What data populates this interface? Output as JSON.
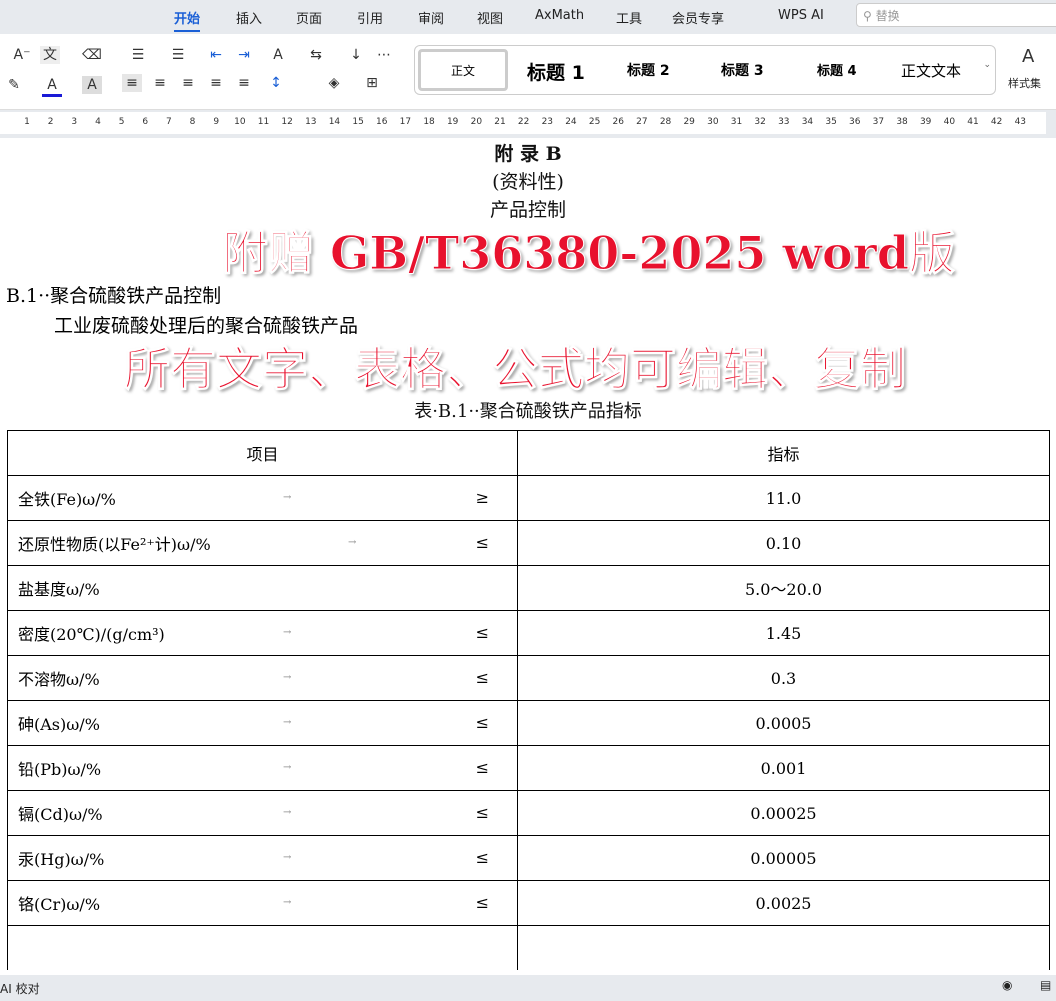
{
  "menu": {
    "tabs": [
      "开始",
      "插入",
      "页面",
      "引用",
      "审阅",
      "视图",
      "AxMath",
      "工具",
      "会员专享",
      "WPS AI"
    ],
    "active": "开始",
    "search_placeholder": "替换"
  },
  "ribbon": {
    "styles": [
      "正文",
      "标题 1",
      "标题 2",
      "标题 3",
      "标题 4",
      "正文文本"
    ],
    "style_set": "样式集",
    "accent": "#1a5fd6"
  },
  "ruler": {
    "numbers": [
      1,
      2,
      3,
      4,
      5,
      6,
      7,
      8,
      9,
      10,
      11,
      12,
      13,
      14,
      15,
      16,
      17,
      18,
      19,
      20,
      21,
      22,
      23,
      24,
      25,
      26,
      27,
      28,
      29,
      30,
      31,
      32,
      33,
      34,
      35,
      36,
      37,
      38,
      39,
      40,
      41,
      42,
      43
    ]
  },
  "document": {
    "appendix_title": "附  录  B",
    "appendix_sub": "(资料性)",
    "appendix_name": "产品控制",
    "section_heading": "B.1··聚合硫酸铁产品控制",
    "paragraph": "工业废硫酸处理后的聚合硫酸铁产品",
    "table_caption": "表·B.1··聚合硫酸铁产品指标",
    "table": {
      "headers": [
        "项目",
        "指标"
      ],
      "rows": [
        {
          "item": "全铁(Fe)ω/%",
          "op": "≥",
          "value": "11.0"
        },
        {
          "item": "还原性物质(以Fe²⁺计)ω/%",
          "op": "≤",
          "value": "0.10"
        },
        {
          "item": "盐基度ω/%",
          "op": "",
          "value": "5.0～20.0"
        },
        {
          "item": "密度(20℃)/(g/cm³)",
          "op": "≤",
          "value": "1.45"
        },
        {
          "item": "不溶物ω/%",
          "op": "≤",
          "value": "0.3"
        },
        {
          "item": "砷(As)ω/%",
          "op": "≤",
          "value": "0.0005"
        },
        {
          "item": "铅(Pb)ω/%",
          "op": "≤",
          "value": "0.001"
        },
        {
          "item": "镉(Cd)ω/%",
          "op": "≤",
          "value": "0.00025"
        },
        {
          "item": "汞(Hg)ω/%",
          "op": "≤",
          "value": "0.00005"
        },
        {
          "item": "铬(Cr)ω/%",
          "op": "≤",
          "value": "0.0025"
        },
        {
          "item": "",
          "op": "",
          "value": ""
        }
      ]
    }
  },
  "watermark": {
    "line1": "附赠 GB/T36380-2025 word版",
    "line2": "所有文字、表格、公式均可编辑、复制",
    "color": "#e8112d"
  },
  "status": {
    "ai_check": "AI 校对"
  }
}
